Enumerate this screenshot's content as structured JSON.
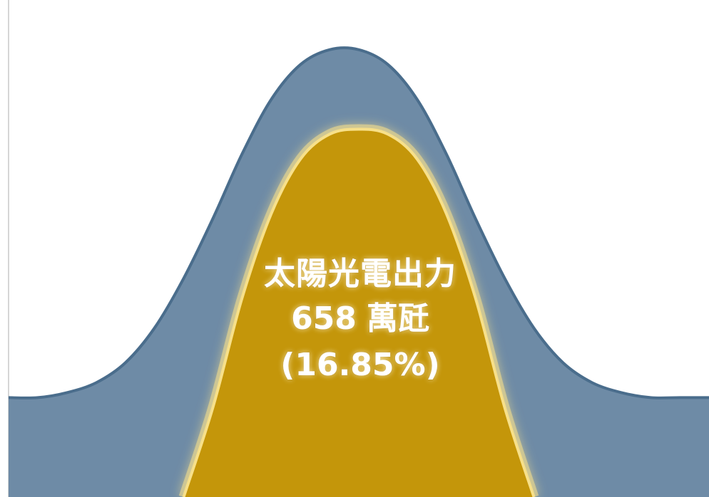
{
  "colors": {
    "total_fill": "#6e8ba6",
    "total_stroke": "#4a6d8c",
    "solar_fill": "#c4960a",
    "solar_stroke": "#f7e08a",
    "label_text": "#ffffff"
  },
  "chart_data": {
    "type": "area",
    "x": [
      0,
      1,
      2,
      3,
      4,
      5,
      6,
      7,
      8,
      9,
      10,
      11,
      12,
      13,
      14,
      15,
      16,
      17,
      18,
      19,
      20,
      21,
      22,
      23,
      24
    ],
    "series": [
      {
        "key": "total",
        "values": [
          1.0,
          1.0,
          1.1,
          1.3,
          1.7,
          2.4,
          3.4,
          4.6,
          5.9,
          7.0,
          7.7,
          8.0,
          8.0,
          7.7,
          7.0,
          5.9,
          4.6,
          3.4,
          2.4,
          1.7,
          1.3,
          1.1,
          1.0,
          1.0,
          1.0
        ]
      },
      {
        "key": "solar",
        "name": "太陽光電出力",
        "values": [
          null,
          null,
          null,
          null,
          null,
          null,
          -1.0,
          0.8,
          3.0,
          4.7,
          5.8,
          6.3,
          6.4,
          6.3,
          5.8,
          4.7,
          3.0,
          0.8,
          -1.0,
          null,
          null,
          null,
          null,
          null,
          null
        ]
      }
    ],
    "ylim": [
      -1,
      9
    ],
    "xlim": [
      0,
      24
    ],
    "grid": false,
    "annotation": {
      "series_name": "太陽光電出力",
      "value": "658",
      "unit": "萬瓩",
      "share": "(16.85%)"
    }
  }
}
